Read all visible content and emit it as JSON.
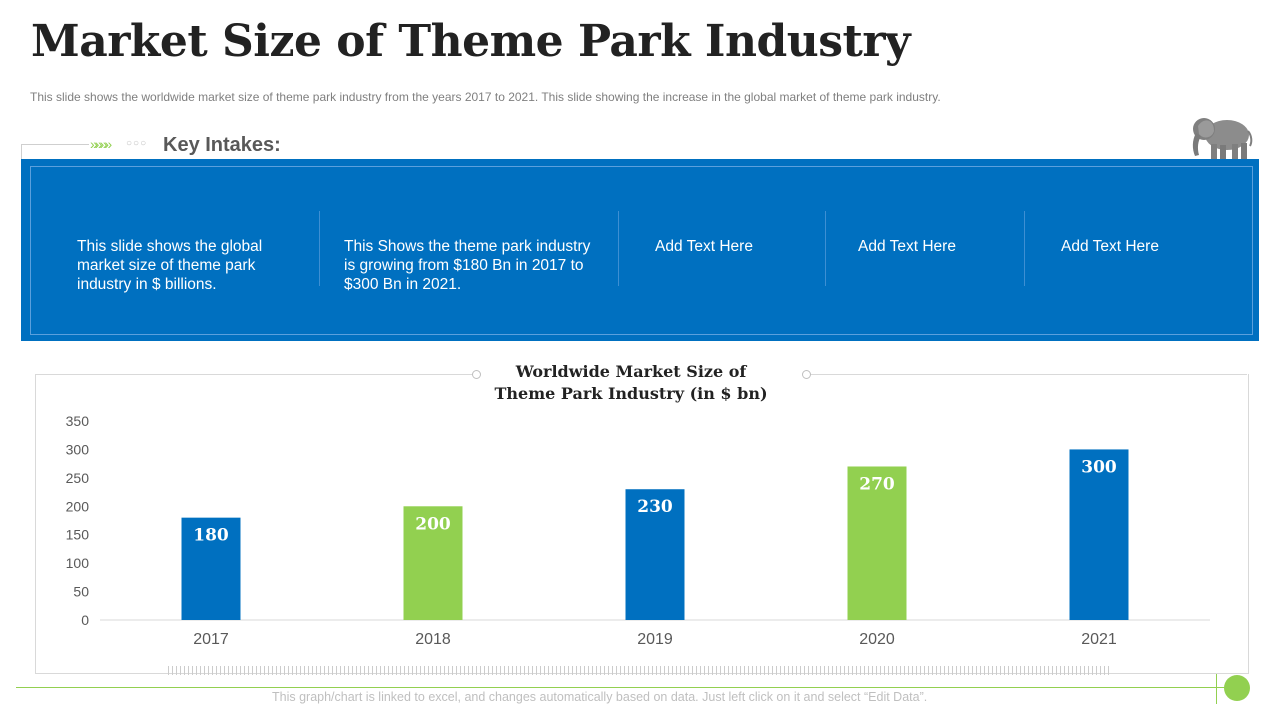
{
  "page": {
    "title": "Market Size of Theme Park Industry",
    "subtitle": "This slide shows the worldwide  market size of theme park industry from the years 2017 to 2021. This slide showing the increase in the global market of theme park industry.",
    "footer_note": "This graph/chart is linked to excel,  and changes automatically based on data. Just left click on it and select “Edit Data”."
  },
  "key_intakes": {
    "label": "Key Intakes:",
    "chevrons": "»»»»",
    "dots": "○○○",
    "items": [
      "This slide shows the global market size of theme park industry  in $ billions.",
      "This Shows the theme park industry  is growing from $180 Bn in 2017 to $300 Bn in 2021.",
      "Add Text Here",
      "Add Text Here",
      "Add Text Here"
    ]
  },
  "colors": {
    "blue": "#0070c0",
    "green": "#92d050",
    "text_dark": "#222222",
    "text_gray": "#7f7f7f"
  },
  "chart_data": {
    "type": "bar",
    "title": "Worldwide Market Size of Theme Park Industry (in $ bn)",
    "categories": [
      "2017",
      "2018",
      "2019",
      "2020",
      "2021"
    ],
    "values": [
      180,
      200,
      230,
      270,
      300
    ],
    "bar_colors": [
      "#0070c0",
      "#92d050",
      "#0070c0",
      "#92d050",
      "#0070c0"
    ],
    "ylim": [
      0,
      350
    ],
    "yticks": [
      0,
      50,
      100,
      150,
      200,
      250,
      300,
      350
    ],
    "xlabel": "",
    "ylabel": "",
    "data_labels": true,
    "grid": false,
    "legend": "none"
  }
}
